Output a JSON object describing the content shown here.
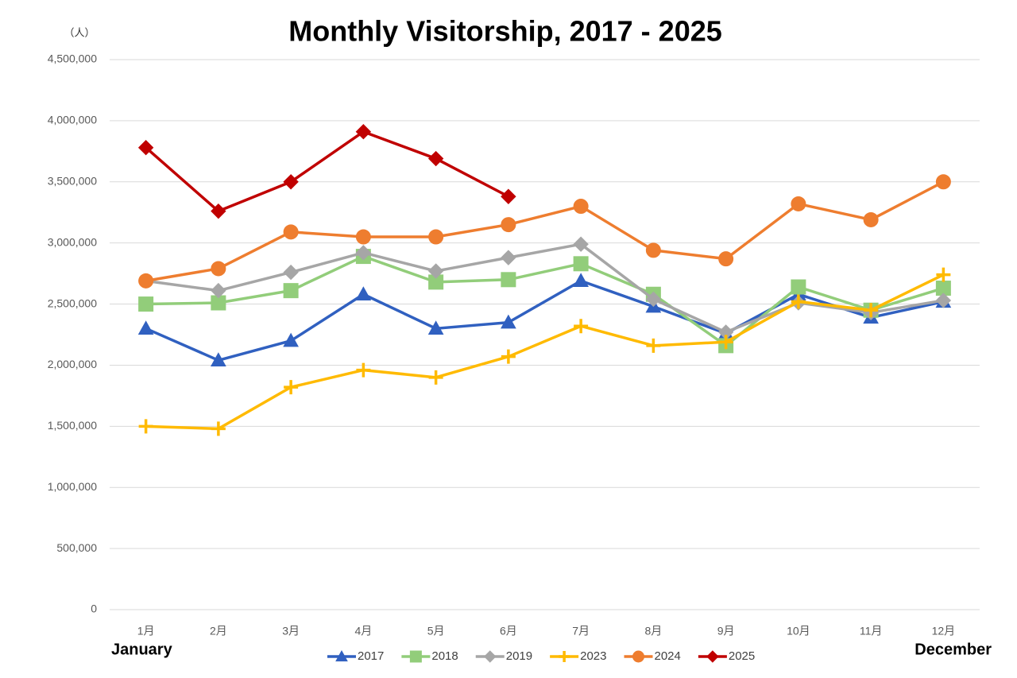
{
  "chart_data": {
    "type": "line",
    "title": "Monthly Visitorship, 2017 - 2025",
    "y_unit": "（人）",
    "x_start_label": "January",
    "x_end_label": "December",
    "categories": [
      "1月",
      "2月",
      "3月",
      "4月",
      "5月",
      "6月",
      "7月",
      "8月",
      "9月",
      "10月",
      "11月",
      "12月"
    ],
    "ylim": [
      0,
      4500000
    ],
    "yticks": [
      0,
      {
        "value": 500000,
        "label": "500,000"
      },
      {
        "value": 1000000,
        "label": "1,000,000"
      },
      {
        "value": 1500000,
        "label": "1,500,000"
      },
      {
        "value": 2000000,
        "label": "2,000,000"
      },
      {
        "value": 2500000,
        "label": "2,500,000"
      },
      {
        "value": 3000000,
        "label": "3,000,000"
      },
      {
        "value": 3500000,
        "label": "3,500,000"
      },
      {
        "value": 4000000,
        "label": "4,000,000"
      },
      {
        "value": 4500000,
        "label": "4,500,000"
      }
    ],
    "grid": true,
    "legend": "bottom",
    "series": [
      {
        "name": "2017",
        "color": "#3060c0",
        "marker": "triangle",
        "values": [
          2300000,
          2040000,
          2200000,
          2580000,
          2300000,
          2350000,
          2690000,
          2480000,
          2260000,
          2580000,
          2390000,
          2520000
        ]
      },
      {
        "name": "2018",
        "color": "#92cd7a",
        "marker": "square",
        "values": [
          2500000,
          2510000,
          2610000,
          2890000,
          2680000,
          2700000,
          2830000,
          2580000,
          2160000,
          2640000,
          2450000,
          2630000
        ]
      },
      {
        "name": "2019",
        "color": "#a6a6a6",
        "marker": "diamond",
        "values": [
          2690000,
          2610000,
          2760000,
          2920000,
          2770000,
          2880000,
          2990000,
          2540000,
          2270000,
          2510000,
          2430000,
          2530000
        ]
      },
      {
        "name": "2023",
        "color": "#ffba00",
        "marker": "plus",
        "values": [
          1500000,
          1480000,
          1820000,
          1960000,
          1900000,
          2070000,
          2320000,
          2160000,
          2190000,
          2520000,
          2450000,
          2740000
        ]
      },
      {
        "name": "2024",
        "color": "#ee7d2f",
        "marker": "circle",
        "values": [
          2690000,
          2790000,
          3090000,
          3050000,
          3050000,
          3150000,
          3300000,
          2940000,
          2870000,
          3320000,
          3190000,
          3500000
        ]
      },
      {
        "name": "2025",
        "color": "#c00000",
        "marker": "diamond",
        "values": [
          3780000,
          3260000,
          3500000,
          3910000,
          3690000,
          3380000,
          null,
          null,
          null,
          null,
          null,
          null
        ]
      }
    ]
  }
}
